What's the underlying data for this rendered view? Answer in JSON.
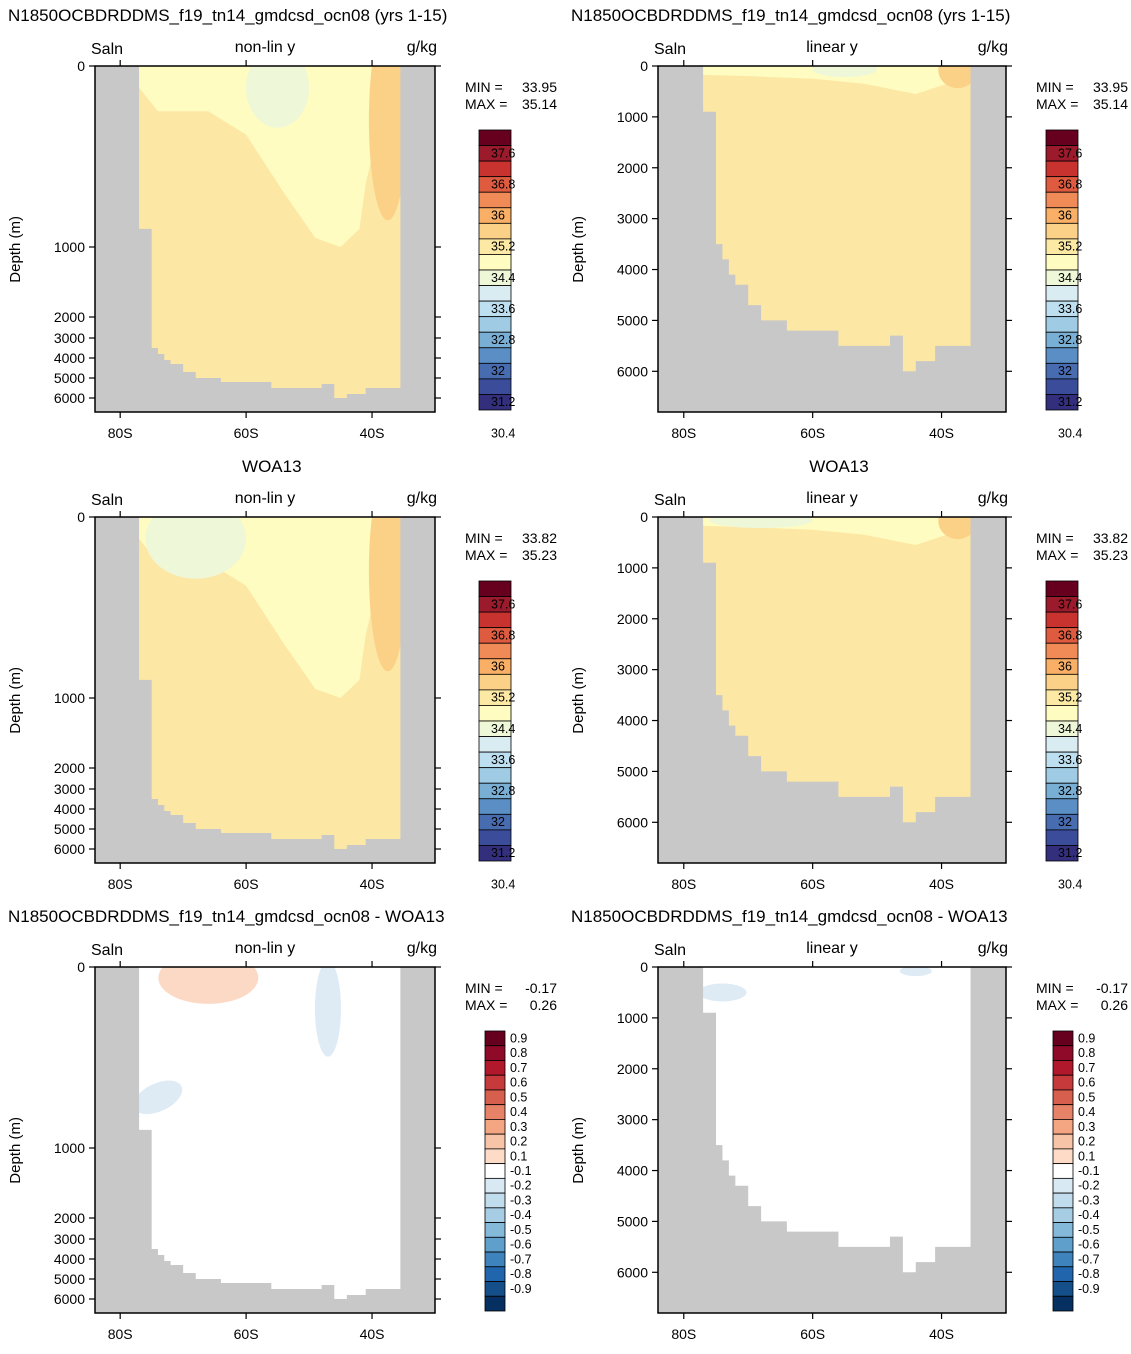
{
  "chart_data": [
    {
      "type": "contour",
      "title": "N1850OCBDRDDMS_f19_tn14_gmdcsd_ocn08 (yrs 1-15)",
      "variable": "Saln",
      "units": "g/kg",
      "scale_label": "non-lin y",
      "ylabel": "Depth (m)",
      "x_ticks": [
        "80S",
        "60S",
        "40S"
      ],
      "y_ticks": [
        "0",
        "1000",
        "2000",
        "3000",
        "4000",
        "5000",
        "6000"
      ],
      "stats": {
        "min_label": "MIN =",
        "min": "33.95",
        "max_label": "MAX =",
        "max": "35.14"
      },
      "colorbar": "salinity",
      "field": "model"
    },
    {
      "type": "contour",
      "title": "N1850OCBDRDDMS_f19_tn14_gmdcsd_ocn08 (yrs 1-15)",
      "variable": "Saln",
      "units": "g/kg",
      "scale_label": "linear y",
      "ylabel": "Depth (m)",
      "x_ticks": [
        "80S",
        "60S",
        "40S"
      ],
      "y_ticks": [
        "0",
        "1000",
        "2000",
        "3000",
        "4000",
        "5000",
        "6000"
      ],
      "stats": {
        "min_label": "MIN =",
        "min": "33.95",
        "max_label": "MAX =",
        "max": "35.14"
      },
      "colorbar": "salinity",
      "field": "model"
    },
    {
      "type": "contour",
      "title": "WOA13",
      "variable": "Saln",
      "units": "g/kg",
      "scale_label": "non-lin y",
      "ylabel": "Depth (m)",
      "x_ticks": [
        "80S",
        "60S",
        "40S"
      ],
      "y_ticks": [
        "0",
        "1000",
        "2000",
        "3000",
        "4000",
        "5000",
        "6000"
      ],
      "stats": {
        "min_label": "MIN =",
        "min": "33.82",
        "max_label": "MAX =",
        "max": "35.23"
      },
      "colorbar": "salinity",
      "field": "obs"
    },
    {
      "type": "contour",
      "title": "WOA13",
      "variable": "Saln",
      "units": "g/kg",
      "scale_label": "linear y",
      "ylabel": "Depth (m)",
      "x_ticks": [
        "80S",
        "60S",
        "40S"
      ],
      "y_ticks": [
        "0",
        "1000",
        "2000",
        "3000",
        "4000",
        "5000",
        "6000"
      ],
      "stats": {
        "min_label": "MIN =",
        "min": "33.82",
        "max_label": "MAX =",
        "max": "35.23"
      },
      "colorbar": "salinity",
      "field": "obs"
    },
    {
      "type": "contour",
      "title": "N1850OCBDRDDMS_f19_tn14_gmdcsd_ocn08 - WOA13",
      "variable": "Saln",
      "units": "g/kg",
      "scale_label": "non-lin y",
      "ylabel": "Depth (m)",
      "x_ticks": [
        "80S",
        "60S",
        "40S"
      ],
      "y_ticks": [
        "0",
        "1000",
        "2000",
        "3000",
        "4000",
        "5000",
        "6000"
      ],
      "stats": {
        "min_label": "MIN =",
        "min": "-0.17",
        "max_label": "MAX =",
        "max": "0.26"
      },
      "colorbar": "diff",
      "field": "diff"
    },
    {
      "type": "contour",
      "title": "N1850OCBDRDDMS_f19_tn14_gmdcsd_ocn08 - WOA13",
      "variable": "Saln",
      "units": "g/kg",
      "scale_label": "linear y",
      "ylabel": "Depth (m)",
      "x_ticks": [
        "80S",
        "60S",
        "40S"
      ],
      "y_ticks": [
        "0",
        "1000",
        "2000",
        "3000",
        "4000",
        "5000",
        "6000"
      ],
      "stats": {
        "min_label": "MIN =",
        "min": "-0.17",
        "max_label": "MAX =",
        "max": "0.26"
      },
      "colorbar": "diff",
      "field": "diff"
    }
  ],
  "colorbars": {
    "salinity": {
      "labels": [
        "37.6",
        "36.8",
        "36",
        "35.2",
        "34.4",
        "33.6",
        "32.8",
        "32",
        "31.2",
        "30.4"
      ],
      "colors": [
        "#67001f",
        "#9b1a2c",
        "#c8332f",
        "#de5b3f",
        "#f08a57",
        "#f9b066",
        "#fbd188",
        "#fce9a4",
        "#fefcc0",
        "#eef7d8",
        "#d8ecf2",
        "#bedff0",
        "#9fcbe4",
        "#7aafd5",
        "#5a8ec4",
        "#476cb0",
        "#3a4c9a",
        "#332f7c"
      ]
    },
    "diff": {
      "labels": [
        "0.9",
        "0.8",
        "0.7",
        "0.6",
        "0.5",
        "0.4",
        "0.3",
        "0.2",
        "0.1",
        "-0.1",
        "-0.2",
        "-0.3",
        "-0.4",
        "-0.5",
        "-0.6",
        "-0.7",
        "-0.8",
        "-0.9"
      ],
      "colors": [
        "#67001f",
        "#8f0a28",
        "#b2182b",
        "#c73a3c",
        "#d6604d",
        "#e58267",
        "#f4a582",
        "#f8c4a8",
        "#fddbc7",
        "#ffffff",
        "#d8e9f4",
        "#c1dcec",
        "#a6cde4",
        "#84b9da",
        "#5e9fcc",
        "#3e83bb",
        "#2166ac",
        "#144f8a",
        "#053061"
      ]
    }
  },
  "styles": {
    "land": "#c8c8c8",
    "sal_fill": "#fde7a4",
    "sal_fresh": "#fefcc0",
    "sal_fresher": "#eef7d8",
    "sal_salty": "#fbd188",
    "diff_red": "#fcd9c5",
    "diff_blue": "#deebf5"
  }
}
